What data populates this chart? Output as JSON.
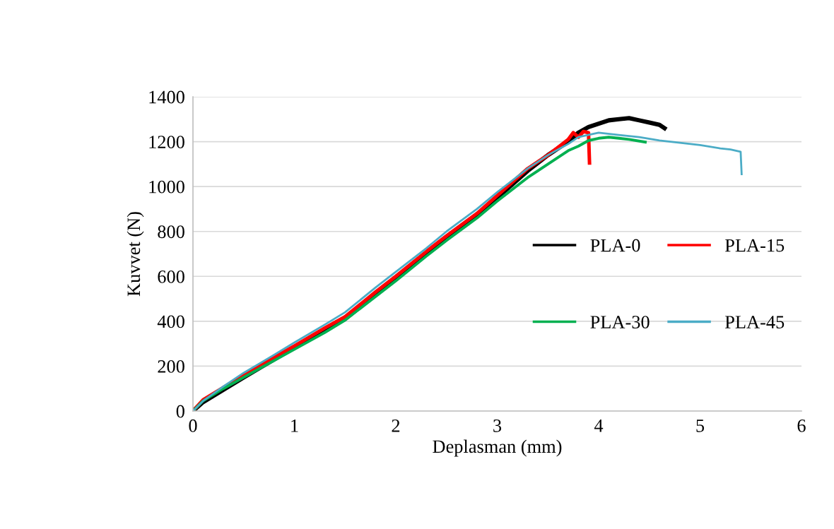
{
  "chart_data": {
    "type": "line",
    "xlabel": "Deplasman (mm)",
    "ylabel": "Kuvvet (N)",
    "xlim": [
      0,
      6
    ],
    "xticks": [
      0,
      1,
      2,
      3,
      4,
      5,
      6
    ],
    "ylim": [
      0,
      1400
    ],
    "yticks": [
      0,
      200,
      400,
      600,
      800,
      1000,
      1200,
      1400
    ],
    "grid": "y",
    "legend": "right",
    "marker": "none",
    "line_style": "solid",
    "series": [
      {
        "name": "PLA-0",
        "color": "#000000",
        "x": [
          0,
          0.1,
          0.3,
          0.5,
          0.8,
          1,
          1.3,
          1.5,
          1.8,
          2,
          2.3,
          2.5,
          2.8,
          3,
          3.3,
          3.5,
          3.7,
          3.8,
          3.9,
          4.0,
          4.1,
          4.2,
          4.3,
          4.4,
          4.5,
          4.6,
          4.65
        ],
        "values": [
          0,
          40,
          95,
          150,
          230,
          285,
          360,
          410,
          520,
          590,
          700,
          775,
          870,
          950,
          1070,
          1140,
          1200,
          1240,
          1265,
          1280,
          1295,
          1300,
          1305,
          1295,
          1285,
          1275,
          1260
        ]
      },
      {
        "name": "PLA-15",
        "color": "#ff0000",
        "x": [
          0,
          0.1,
          0.3,
          0.5,
          0.8,
          1,
          1.3,
          1.5,
          1.8,
          2,
          2.3,
          2.5,
          2.8,
          3,
          3.3,
          3.5,
          3.7,
          3.75,
          3.8,
          3.85,
          3.9,
          3.91
        ],
        "values": [
          0,
          50,
          105,
          160,
          240,
          290,
          370,
          420,
          530,
          600,
          710,
          780,
          880,
          960,
          1080,
          1140,
          1210,
          1240,
          1220,
          1245,
          1240,
          1105
        ]
      },
      {
        "name": "PLA-30",
        "color": "#00b050",
        "x": [
          0,
          0.1,
          0.3,
          0.5,
          0.8,
          1,
          1.3,
          1.5,
          1.8,
          2,
          2.3,
          2.5,
          2.8,
          3,
          3.3,
          3.5,
          3.7,
          3.8,
          3.9,
          4.0,
          4.1,
          4.2,
          4.3,
          4.46
        ],
        "values": [
          0,
          45,
          100,
          150,
          225,
          275,
          350,
          405,
          510,
          580,
          690,
          760,
          860,
          935,
          1040,
          1100,
          1160,
          1180,
          1205,
          1215,
          1220,
          1215,
          1210,
          1198
        ]
      },
      {
        "name": "PLA-45",
        "color": "#4bacc6",
        "x": [
          0,
          0.1,
          0.3,
          0.5,
          0.8,
          1,
          1.3,
          1.5,
          1.8,
          2,
          2.3,
          2.5,
          2.8,
          3,
          3.3,
          3.5,
          3.7,
          3.8,
          4.0,
          4.2,
          4.4,
          4.6,
          4.8,
          5.0,
          5.2,
          5.3,
          5.4,
          5.41
        ],
        "values": [
          0,
          45,
          110,
          170,
          250,
          305,
          385,
          440,
          550,
          620,
          725,
          800,
          900,
          975,
          1080,
          1140,
          1190,
          1220,
          1240,
          1230,
          1220,
          1205,
          1195,
          1185,
          1170,
          1165,
          1155,
          1055
        ]
      }
    ]
  }
}
